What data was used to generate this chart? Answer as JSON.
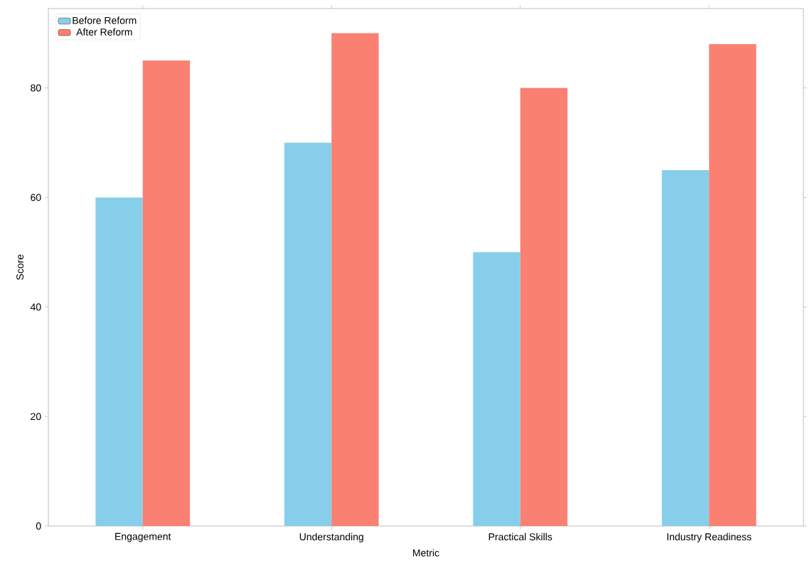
{
  "chart_data": {
    "type": "bar",
    "xlabel": "Metric",
    "ylabel": "Score",
    "categories": [
      "Engagement",
      "Understanding",
      "Practical Skills",
      "Industry Readiness"
    ],
    "series": [
      {
        "name": "Before Reform",
        "color": "#87ceeb",
        "values": [
          60,
          70,
          50,
          65
        ]
      },
      {
        "name": "After Reform",
        "color": "#fa8072",
        "values": [
          85,
          90,
          80,
          88
        ]
      }
    ],
    "ylim": [
      0,
      94.5
    ],
    "yticks": [
      0,
      20,
      40,
      60,
      80
    ],
    "legend": "top left",
    "grid": false
  }
}
